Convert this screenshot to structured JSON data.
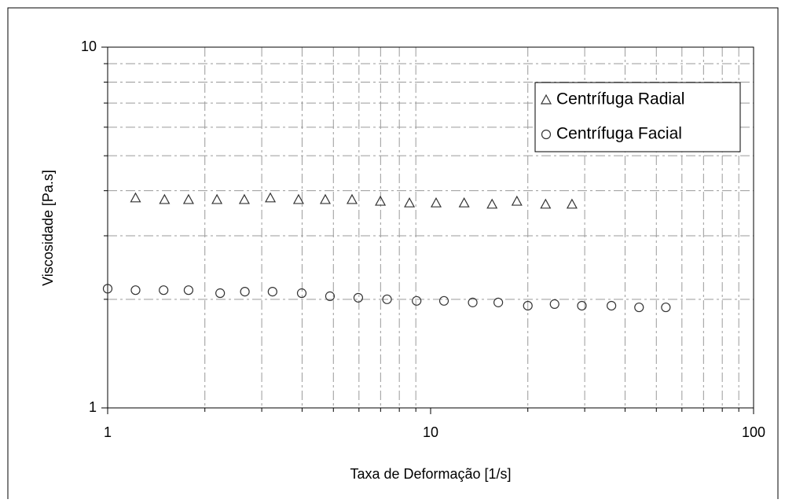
{
  "chart_data": {
    "type": "scatter",
    "x_label": "Taxa de Deformação [1/s]",
    "y_label": "Viscosidade [Pa.s]",
    "log_x": true,
    "log_y": true,
    "grid": true,
    "legend": "upper right",
    "xlim": [
      1,
      100
    ],
    "ylim": [
      1,
      10
    ],
    "xticks": [
      1,
      10,
      100
    ],
    "yticks": [
      1,
      10
    ],
    "xminor_ticks": [
      2,
      3,
      4,
      5,
      6,
      7,
      8,
      9,
      20,
      30,
      40,
      50,
      60,
      70,
      80,
      90
    ],
    "yminor_ticks": [
      2,
      3,
      4,
      5,
      6,
      7,
      8,
      9
    ],
    "series": [
      {
        "name": "Centrífuga Radial",
        "marker": "triangle",
        "color": "#333333",
        "x": [
          1.22,
          1.5,
          1.78,
          2.18,
          2.65,
          3.19,
          3.9,
          4.72,
          5.71,
          6.99,
          8.6,
          10.4,
          12.7,
          15.5,
          18.5,
          22.7,
          27.4
        ],
        "values": [
          3.82,
          3.78,
          3.78,
          3.78,
          3.78,
          3.82,
          3.78,
          3.78,
          3.78,
          3.74,
          3.7,
          3.7,
          3.7,
          3.67,
          3.74,
          3.67,
          3.67
        ]
      },
      {
        "name": "Centrífuga Facial",
        "marker": "circle",
        "color": "#333333",
        "x": [
          1.0,
          1.22,
          1.49,
          1.78,
          2.23,
          2.66,
          3.24,
          3.99,
          4.88,
          5.97,
          7.33,
          9.05,
          11.0,
          13.5,
          16.2,
          20.0,
          24.2,
          29.4,
          36.3,
          44.2,
          53.5
        ],
        "values": [
          2.14,
          2.12,
          2.12,
          2.12,
          2.08,
          2.1,
          2.1,
          2.08,
          2.04,
          2.02,
          2.0,
          1.98,
          1.98,
          1.96,
          1.96,
          1.92,
          1.94,
          1.92,
          1.92,
          1.9,
          1.9
        ]
      }
    ]
  }
}
